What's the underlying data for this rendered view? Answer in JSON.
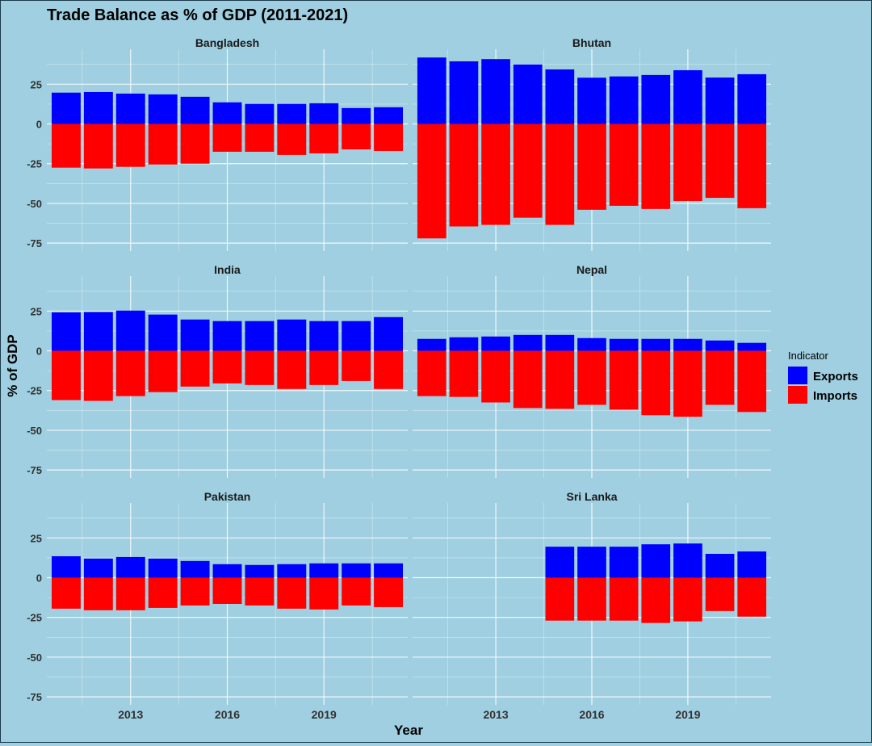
{
  "chart_data": {
    "type": "bar",
    "title": "Trade Balance as % of GDP (2011-2021)",
    "xlabel": "Year",
    "ylabel": "% of GDP",
    "ylim": [
      -80,
      47
    ],
    "y_ticks": [
      -75,
      -50,
      -25,
      0,
      25
    ],
    "x_ticks": [
      2013,
      2016,
      2019
    ],
    "years": [
      2011,
      2012,
      2013,
      2014,
      2015,
      2016,
      2017,
      2018,
      2019,
      2020,
      2021
    ],
    "legend": {
      "title": "Indicator",
      "position": "right",
      "items": [
        {
          "label": "Exports",
          "color": "#0000ff"
        },
        {
          "label": "Imports",
          "color": "#ff0000"
        }
      ]
    },
    "facets": [
      {
        "name": "Bangladesh",
        "exports": [
          19.7,
          20.1,
          19.1,
          18.6,
          17.1,
          13.6,
          12.6,
          12.6,
          13.0,
          10.0,
          10.5
        ],
        "imports": [
          -27.5,
          -28.0,
          -27.0,
          -25.5,
          -25.0,
          -17.5,
          -17.5,
          -19.5,
          -18.5,
          -16.0,
          -17.0
        ]
      },
      {
        "name": "Bhutan",
        "exports": [
          41.8,
          39.4,
          40.8,
          37.4,
          34.3,
          29.1,
          29.9,
          30.8,
          33.8,
          29.2,
          31.3
        ],
        "imports": [
          -72.0,
          -64.5,
          -63.5,
          -59.0,
          -63.5,
          -54.0,
          -51.5,
          -53.5,
          -48.5,
          -46.5,
          -53.0
        ]
      },
      {
        "name": "India",
        "exports": [
          24.2,
          24.4,
          25.3,
          22.8,
          19.7,
          18.7,
          18.7,
          19.7,
          18.7,
          18.7,
          21.2
        ],
        "imports": [
          -31.0,
          -31.5,
          -28.5,
          -26.0,
          -22.5,
          -20.5,
          -21.5,
          -24.0,
          -21.5,
          -19.0,
          -24.0
        ]
      },
      {
        "name": "Nepal",
        "exports": [
          7.5,
          8.5,
          9.0,
          10.0,
          10.0,
          8.0,
          7.5,
          7.5,
          7.5,
          6.5,
          5.0
        ],
        "imports": [
          -28.5,
          -29.0,
          -32.5,
          -36.0,
          -36.5,
          -34.0,
          -37.0,
          -40.5,
          -41.5,
          -34.0,
          -38.5
        ]
      },
      {
        "name": "Pakistan",
        "exports": [
          13.5,
          12.0,
          13.0,
          12.0,
          10.5,
          8.5,
          8.0,
          8.5,
          9.0,
          9.0,
          9.0
        ],
        "imports": [
          -19.5,
          -20.5,
          -20.5,
          -19.0,
          -17.5,
          -16.5,
          -17.5,
          -19.5,
          -20.0,
          -17.5,
          -18.5
        ]
      },
      {
        "name": "Sri Lanka",
        "exports": [
          null,
          null,
          null,
          null,
          19.5,
          19.5,
          19.5,
          21.0,
          21.5,
          15.0,
          16.5
        ],
        "imports": [
          null,
          null,
          null,
          null,
          -27.0,
          -27.0,
          -27.0,
          -28.5,
          -27.5,
          -21.0,
          -24.5
        ]
      }
    ]
  }
}
